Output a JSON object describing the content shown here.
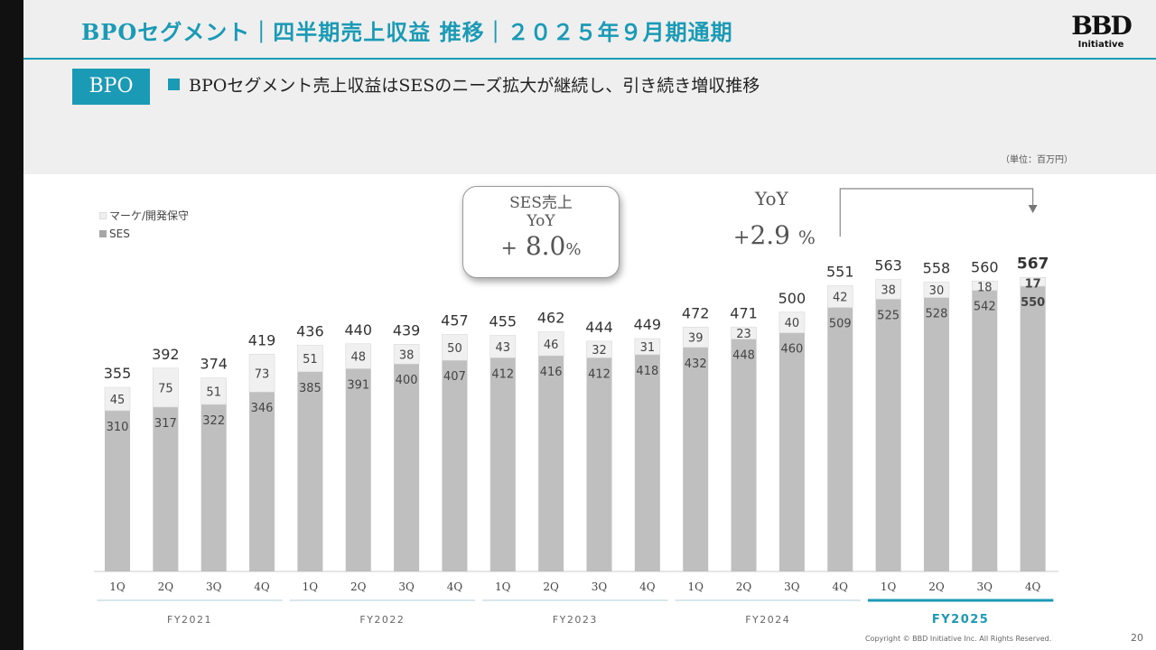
{
  "header": {
    "title": "BPOセグメント｜四半期売上収益 推移｜２０２５年９月期通期",
    "logo_main": "BBD",
    "logo_sub": "Initiative"
  },
  "segment_tag": "BPO",
  "headline": "BPOセグメント売上収益はSESのニーズ拡大が継続し、引き続き増収推移",
  "unit_note": "（単位：百万円）",
  "legend": [
    {
      "label": "マーケ/開発保守",
      "color": "#f0f0f0"
    },
    {
      "label": "SES",
      "color": "#bfbfbf"
    }
  ],
  "callout": {
    "line1": "SES売上",
    "line2": "YoY",
    "prefix": "+",
    "value": "8.0",
    "suffix": "%"
  },
  "yoy": {
    "label": "YoY",
    "prefix": "+",
    "value": "2.9",
    "suffix": "%"
  },
  "footer": {
    "copyright": "Copyright © BBD Initiative Inc. All Rights Reserved.",
    "page": "20"
  },
  "colors": {
    "accent": "#1a9ab5",
    "ses": "#bfbfbf",
    "marketing": "#f0f0f0"
  },
  "chart_data": {
    "type": "bar",
    "stacked": true,
    "categories": [
      "1Q",
      "2Q",
      "3Q",
      "4Q",
      "1Q",
      "2Q",
      "3Q",
      "4Q",
      "1Q",
      "2Q",
      "3Q",
      "4Q",
      "1Q",
      "2Q",
      "3Q",
      "4Q",
      "1Q",
      "2Q",
      "3Q",
      "4Q"
    ],
    "groups": [
      {
        "label": "FY2021",
        "start": 0,
        "end": 3
      },
      {
        "label": "FY2022",
        "start": 4,
        "end": 7
      },
      {
        "label": "FY2023",
        "start": 8,
        "end": 11
      },
      {
        "label": "FY2024",
        "start": 12,
        "end": 15
      },
      {
        "label": "FY2025",
        "start": 16,
        "end": 19,
        "highlight": true
      }
    ],
    "series": [
      {
        "name": "SES",
        "values": [
          310,
          317,
          322,
          346,
          385,
          391,
          400,
          407,
          412,
          416,
          412,
          418,
          432,
          448,
          460,
          509,
          525,
          528,
          542,
          550
        ]
      },
      {
        "name": "マーケ/開発保守",
        "values": [
          45,
          75,
          51,
          73,
          51,
          48,
          38,
          50,
          43,
          46,
          32,
          31,
          39,
          23,
          40,
          42,
          38,
          30,
          18,
          17
        ]
      }
    ],
    "totals": [
      355,
      392,
      374,
      419,
      436,
      440,
      439,
      457,
      455,
      462,
      444,
      449,
      472,
      471,
      500,
      551,
      563,
      558,
      560,
      567
    ],
    "highlight_last": true,
    "ylim": [
      0,
      600
    ]
  }
}
